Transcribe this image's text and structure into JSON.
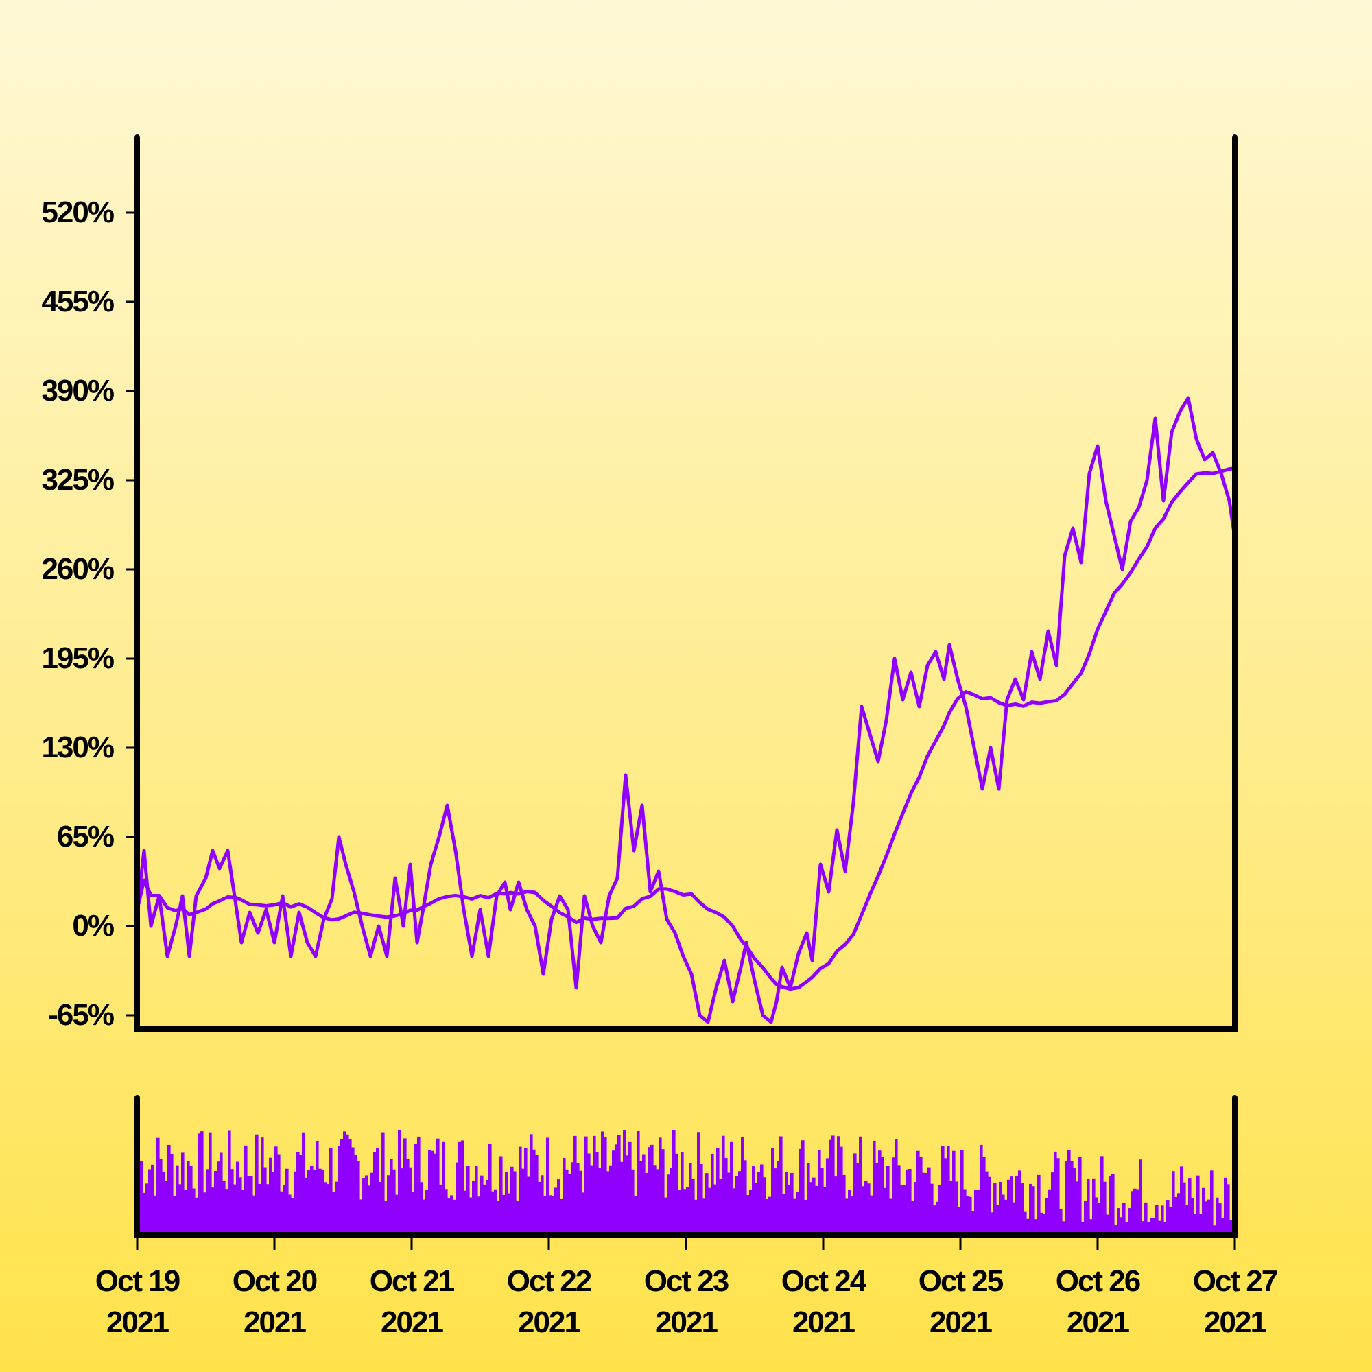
{
  "chart_data": {
    "type": "line",
    "colors": {
      "line": "#8f00ff",
      "ma": "#8f00ff",
      "volume": "#8f00ff",
      "axis": "#000000"
    },
    "x_range": [
      "2021-10-19",
      "2021-10-27"
    ],
    "x_ticks": [
      {
        "date": "2021-10-19",
        "line1": "Oct 19",
        "line2": "2021"
      },
      {
        "date": "2021-10-20",
        "line1": "Oct 20",
        "line2": "2021"
      },
      {
        "date": "2021-10-21",
        "line1": "Oct 21",
        "line2": "2021"
      },
      {
        "date": "2021-10-22",
        "line1": "Oct 22",
        "line2": "2021"
      },
      {
        "date": "2021-10-23",
        "line1": "Oct 23",
        "line2": "2021"
      },
      {
        "date": "2021-10-24",
        "line1": "Oct 24",
        "line2": "2021"
      },
      {
        "date": "2021-10-25",
        "line1": "Oct 25",
        "line2": "2021"
      },
      {
        "date": "2021-10-26",
        "line1": "Oct 26",
        "line2": "2021"
      },
      {
        "date": "2021-10-27",
        "line1": "Oct 27",
        "line2": "2021"
      }
    ],
    "y_ticks": [
      {
        "value": -65,
        "label": "-65%"
      },
      {
        "value": 0,
        "label": "0%"
      },
      {
        "value": 65,
        "label": "65%"
      },
      {
        "value": 130,
        "label": "130%"
      },
      {
        "value": 195,
        "label": "195%"
      },
      {
        "value": 260,
        "label": "260%"
      },
      {
        "value": 325,
        "label": "325%"
      },
      {
        "value": 390,
        "label": "390%"
      },
      {
        "value": 455,
        "label": "455%"
      },
      {
        "value": 520,
        "label": "520%"
      }
    ],
    "ylim": [
      -75,
      575
    ],
    "grid": false,
    "series": [
      {
        "role": "price",
        "points": [
          [
            "2021-10-19 00:00",
            12
          ],
          [
            "2021-10-19 01:00",
            55
          ],
          [
            "2021-10-19 02:30",
            0
          ],
          [
            "2021-10-19 04:00",
            22
          ],
          [
            "2021-10-19 05:30",
            -22
          ],
          [
            "2021-10-19 07:00",
            0
          ],
          [
            "2021-10-19 08:30",
            22
          ],
          [
            "2021-10-19 10:00",
            -22
          ],
          [
            "2021-10-19 11:30",
            22
          ],
          [
            "2021-10-19 13:00",
            35
          ],
          [
            "2021-10-19 14:30",
            55
          ],
          [
            "2021-10-19 16:00",
            42
          ],
          [
            "2021-10-19 17:30",
            55
          ],
          [
            "2021-10-19 19:00",
            15
          ],
          [
            "2021-10-19 20:00",
            -12
          ],
          [
            "2021-10-19 21:30",
            10
          ],
          [
            "2021-10-19 23:00",
            -5
          ],
          [
            "2021-10-20 00:30",
            12
          ],
          [
            "2021-10-20 02:00",
            -12
          ],
          [
            "2021-10-20 03:30",
            22
          ],
          [
            "2021-10-20 05:00",
            -22
          ],
          [
            "2021-10-20 06:30",
            10
          ],
          [
            "2021-10-20 08:00",
            -12
          ],
          [
            "2021-10-20 09:30",
            -22
          ],
          [
            "2021-10-20 11:00",
            5
          ],
          [
            "2021-10-20 12:30",
            20
          ],
          [
            "2021-10-20 14:00",
            65
          ],
          [
            "2021-10-20 15:00",
            45
          ],
          [
            "2021-10-20 16:30",
            25
          ],
          [
            "2021-10-20 18:00",
            0
          ],
          [
            "2021-10-20 19:30",
            -22
          ],
          [
            "2021-10-20 21:00",
            0
          ],
          [
            "2021-10-20 22:30",
            -22
          ],
          [
            "2021-10-21 00:00",
            35
          ],
          [
            "2021-10-21 01:30",
            0
          ],
          [
            "2021-10-21 02:30",
            45
          ],
          [
            "2021-10-21 04:00",
            -12
          ],
          [
            "2021-10-21 05:30",
            10
          ],
          [
            "2021-10-21 07:00",
            45
          ],
          [
            "2021-10-21 08:30",
            65
          ],
          [
            "2021-10-21 10:00",
            88
          ],
          [
            "2021-10-21 11:30",
            55
          ],
          [
            "2021-10-21 13:00",
            12
          ],
          [
            "2021-10-21 14:00",
            -22
          ],
          [
            "2021-10-21 15:30",
            12
          ],
          [
            "2021-10-21 17:00",
            -22
          ],
          [
            "2021-10-21 18:30",
            22
          ],
          [
            "2021-10-21 20:00",
            32
          ],
          [
            "2021-10-21 21:00",
            12
          ],
          [
            "2021-10-21 22:30",
            32
          ],
          [
            "2021-10-22 00:00",
            12
          ],
          [
            "2021-10-22 01:30",
            0
          ],
          [
            "2021-10-22 02:30",
            -35
          ],
          [
            "2021-10-22 04:00",
            5
          ],
          [
            "2021-10-22 05:30",
            22
          ],
          [
            "2021-10-22 07:00",
            12
          ],
          [
            "2021-10-22 08:30",
            -45
          ],
          [
            "2021-10-22 10:00",
            22
          ],
          [
            "2021-10-22 11:30",
            0
          ],
          [
            "2021-10-22 13:00",
            -12
          ],
          [
            "2021-10-22 14:30",
            22
          ],
          [
            "2021-10-22 16:00",
            35
          ],
          [
            "2021-10-22 17:30",
            110
          ],
          [
            "2021-10-22 19:00",
            55
          ],
          [
            "2021-10-22 20:30",
            88
          ],
          [
            "2021-10-22 22:00",
            25
          ],
          [
            "2021-10-22 23:30",
            40
          ],
          [
            "2021-10-23 00:30",
            5
          ],
          [
            "2021-10-23 02:00",
            -5
          ],
          [
            "2021-10-23 03:30",
            -22
          ],
          [
            "2021-10-23 05:00",
            -35
          ],
          [
            "2021-10-23 06:30",
            -65
          ],
          [
            "2021-10-23 08:00",
            -70
          ],
          [
            "2021-10-23 09:30",
            -45
          ],
          [
            "2021-10-23 11:00",
            -25
          ],
          [
            "2021-10-23 12:30",
            -55
          ],
          [
            "2021-10-23 14:00",
            -30
          ],
          [
            "2021-10-23 15:00",
            -12
          ],
          [
            "2021-10-23 16:30",
            -40
          ],
          [
            "2021-10-23 18:00",
            -65
          ],
          [
            "2021-10-23 19:30",
            -70
          ],
          [
            "2021-10-23 21:00",
            -55
          ],
          [
            "2021-10-23 22:30",
            -30
          ],
          [
            "2021-10-23 23:30",
            -45
          ],
          [
            "2021-10-23 10:00",
            -38
          ],
          [
            "2021-10-23 12:00",
            -60
          ],
          [
            "2021-10-23 13:30",
            -45
          ],
          [
            "2021-10-23 15:30",
            -65
          ],
          [
            "2021-10-23 17:00",
            -35
          ],
          [
            "2021-10-23 18:30",
            -55
          ],
          [
            "2021-10-23 20:00",
            -40
          ]
        ],
        "note_points": "compact description; see render script"
      }
    ]
  }
}
